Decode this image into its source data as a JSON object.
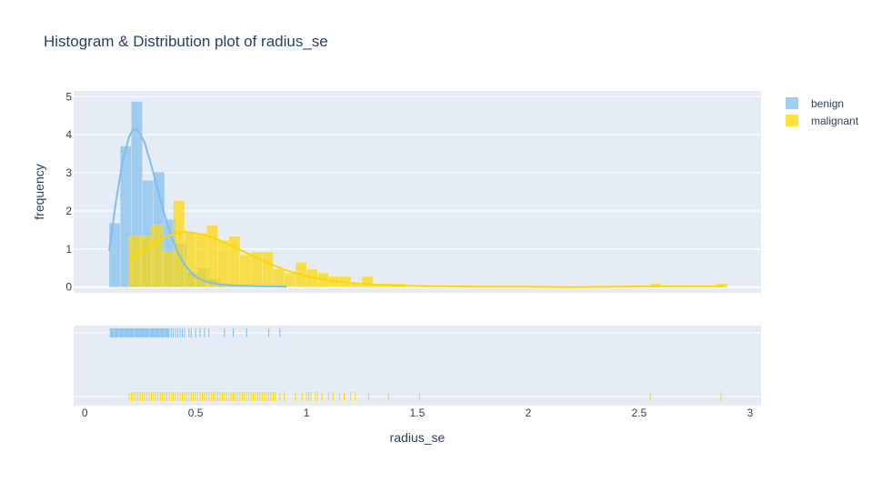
{
  "chart_data": {
    "type": "histogram",
    "title": "Histogram & Distribution plot of radius_se",
    "xlabel": "radius_se",
    "ylabel": "frequency",
    "xlim": [
      -0.05,
      3.05
    ],
    "ylim": [
      -0.15,
      5.15
    ],
    "x_ticks": [
      0,
      0.5,
      1,
      1.5,
      2,
      2.5,
      3
    ],
    "x_tick_labels": [
      "0",
      "0.5",
      "1",
      "1.5",
      "2",
      "2.5",
      "3"
    ],
    "y_ticks": [
      0,
      1,
      2,
      3,
      4,
      5
    ],
    "y_tick_labels": [
      "0",
      "1",
      "2",
      "3",
      "4",
      "5"
    ],
    "legend_position": "top-right",
    "grid": true,
    "series": [
      {
        "name": "benign",
        "color": "#7fbfee",
        "bins": [
          {
            "x0": 0.11,
            "x1": 0.16,
            "y": 1.68
          },
          {
            "x0": 0.16,
            "x1": 0.21,
            "y": 3.7
          },
          {
            "x0": 0.21,
            "x1": 0.26,
            "y": 4.87
          },
          {
            "x0": 0.26,
            "x1": 0.31,
            "y": 2.8
          },
          {
            "x0": 0.31,
            "x1": 0.36,
            "y": 3.02
          },
          {
            "x0": 0.36,
            "x1": 0.41,
            "y": 1.78
          },
          {
            "x0": 0.41,
            "x1": 0.46,
            "y": 1.15
          },
          {
            "x0": 0.46,
            "x1": 0.51,
            "y": 0.4
          },
          {
            "x0": 0.51,
            "x1": 0.56,
            "y": 0.5
          },
          {
            "x0": 0.56,
            "x1": 0.61,
            "y": 0.22
          },
          {
            "x0": 0.61,
            "x1": 0.66,
            "y": 0.1
          },
          {
            "x0": 0.66,
            "x1": 0.71,
            "y": 0.06
          },
          {
            "x0": 0.71,
            "x1": 0.76,
            "y": 0.06
          },
          {
            "x0": 0.76,
            "x1": 0.81,
            "y": 0.03
          },
          {
            "x0": 0.81,
            "x1": 0.86,
            "y": 0.03
          },
          {
            "x0": 0.86,
            "x1": 0.91,
            "y": 0.03
          }
        ],
        "curve": [
          [
            0.11,
            0.95
          ],
          [
            0.14,
            2.2
          ],
          [
            0.17,
            3.3
          ],
          [
            0.2,
            3.95
          ],
          [
            0.22,
            4.15
          ],
          [
            0.24,
            4.12
          ],
          [
            0.27,
            3.8
          ],
          [
            0.3,
            3.2
          ],
          [
            0.33,
            2.55
          ],
          [
            0.36,
            1.9
          ],
          [
            0.39,
            1.35
          ],
          [
            0.42,
            0.9
          ],
          [
            0.45,
            0.6
          ],
          [
            0.48,
            0.38
          ],
          [
            0.51,
            0.24
          ],
          [
            0.55,
            0.14
          ],
          [
            0.6,
            0.08
          ],
          [
            0.65,
            0.05
          ],
          [
            0.7,
            0.04
          ],
          [
            0.75,
            0.03
          ],
          [
            0.8,
            0.02
          ],
          [
            0.85,
            0.02
          ],
          [
            0.91,
            0.01
          ]
        ],
        "rug": [
          0.115,
          0.12,
          0.125,
          0.13,
          0.135,
          0.14,
          0.145,
          0.15,
          0.155,
          0.16,
          0.165,
          0.17,
          0.175,
          0.18,
          0.185,
          0.19,
          0.195,
          0.2,
          0.205,
          0.21,
          0.215,
          0.22,
          0.225,
          0.23,
          0.235,
          0.24,
          0.245,
          0.25,
          0.255,
          0.26,
          0.265,
          0.27,
          0.275,
          0.28,
          0.285,
          0.29,
          0.295,
          0.3,
          0.305,
          0.31,
          0.315,
          0.32,
          0.325,
          0.33,
          0.335,
          0.34,
          0.345,
          0.35,
          0.355,
          0.36,
          0.365,
          0.37,
          0.375,
          0.38,
          0.39,
          0.4,
          0.41,
          0.42,
          0.43,
          0.44,
          0.45,
          0.47,
          0.48,
          0.5,
          0.52,
          0.54,
          0.56,
          0.63,
          0.67,
          0.73,
          0.83,
          0.88
        ]
      },
      {
        "name": "malignant",
        "color": "#ffd700",
        "bins": [
          {
            "x0": 0.2,
            "x1": 0.25,
            "y": 1.33
          },
          {
            "x0": 0.25,
            "x1": 0.3,
            "y": 1.33
          },
          {
            "x0": 0.3,
            "x1": 0.35,
            "y": 1.62
          },
          {
            "x0": 0.35,
            "x1": 0.4,
            "y": 0.93
          },
          {
            "x0": 0.4,
            "x1": 0.45,
            "y": 2.27
          },
          {
            "x0": 0.45,
            "x1": 0.5,
            "y": 1.42
          },
          {
            "x0": 0.5,
            "x1": 0.55,
            "y": 1.42
          },
          {
            "x0": 0.55,
            "x1": 0.6,
            "y": 1.62
          },
          {
            "x0": 0.6,
            "x1": 0.65,
            "y": 1.23
          },
          {
            "x0": 0.65,
            "x1": 0.7,
            "y": 1.33
          },
          {
            "x0": 0.7,
            "x1": 0.75,
            "y": 0.85
          },
          {
            "x0": 0.75,
            "x1": 0.8,
            "y": 0.93
          },
          {
            "x0": 0.8,
            "x1": 0.85,
            "y": 0.93
          },
          {
            "x0": 0.85,
            "x1": 0.9,
            "y": 0.47
          },
          {
            "x0": 0.9,
            "x1": 0.95,
            "y": 0.37
          },
          {
            "x0": 0.95,
            "x1": 1.0,
            "y": 0.65
          },
          {
            "x0": 1.0,
            "x1": 1.05,
            "y": 0.47
          },
          {
            "x0": 1.05,
            "x1": 1.1,
            "y": 0.37
          },
          {
            "x0": 1.1,
            "x1": 1.15,
            "y": 0.28
          },
          {
            "x0": 1.15,
            "x1": 1.2,
            "y": 0.28
          },
          {
            "x0": 1.2,
            "x1": 1.25,
            "y": 0.09
          },
          {
            "x0": 1.25,
            "x1": 1.3,
            "y": 0.28
          },
          {
            "x0": 1.3,
            "x1": 1.35,
            "y": 0.09
          },
          {
            "x0": 1.35,
            "x1": 1.4,
            "y": 0.09
          },
          {
            "x0": 1.4,
            "x1": 1.45,
            "y": 0.09
          },
          {
            "x0": 1.5,
            "x1": 1.55,
            "y": 0.05
          },
          {
            "x0": 2.55,
            "x1": 2.6,
            "y": 0.09
          },
          {
            "x0": 2.85,
            "x1": 2.9,
            "y": 0.09
          }
        ],
        "curve": [
          [
            0.2,
            0.7
          ],
          [
            0.25,
            0.9
          ],
          [
            0.3,
            1.1
          ],
          [
            0.35,
            1.28
          ],
          [
            0.4,
            1.4
          ],
          [
            0.45,
            1.45
          ],
          [
            0.5,
            1.42
          ],
          [
            0.55,
            1.36
          ],
          [
            0.6,
            1.25
          ],
          [
            0.65,
            1.12
          ],
          [
            0.7,
            0.98
          ],
          [
            0.75,
            0.84
          ],
          [
            0.8,
            0.7
          ],
          [
            0.85,
            0.57
          ],
          [
            0.9,
            0.46
          ],
          [
            0.95,
            0.37
          ],
          [
            1.0,
            0.29
          ],
          [
            1.05,
            0.23
          ],
          [
            1.1,
            0.18
          ],
          [
            1.2,
            0.11
          ],
          [
            1.3,
            0.07
          ],
          [
            1.4,
            0.04
          ],
          [
            1.5,
            0.03
          ],
          [
            1.65,
            0.02
          ],
          [
            1.8,
            0.01
          ],
          [
            2.0,
            0.01
          ],
          [
            2.2,
            0.0
          ],
          [
            2.4,
            0.01
          ],
          [
            2.55,
            0.02
          ],
          [
            2.7,
            0.02
          ],
          [
            2.88,
            0.02
          ]
        ],
        "rug": [
          0.2,
          0.21,
          0.22,
          0.23,
          0.24,
          0.25,
          0.26,
          0.27,
          0.28,
          0.29,
          0.3,
          0.31,
          0.32,
          0.33,
          0.34,
          0.35,
          0.36,
          0.37,
          0.38,
          0.39,
          0.4,
          0.41,
          0.42,
          0.43,
          0.44,
          0.45,
          0.46,
          0.47,
          0.48,
          0.49,
          0.5,
          0.51,
          0.52,
          0.53,
          0.54,
          0.55,
          0.56,
          0.57,
          0.58,
          0.59,
          0.6,
          0.61,
          0.62,
          0.63,
          0.64,
          0.65,
          0.66,
          0.67,
          0.68,
          0.69,
          0.7,
          0.71,
          0.72,
          0.73,
          0.74,
          0.75,
          0.76,
          0.77,
          0.78,
          0.79,
          0.8,
          0.81,
          0.82,
          0.83,
          0.84,
          0.85,
          0.86,
          0.88,
          0.9,
          0.95,
          0.98,
          1.0,
          1.01,
          1.02,
          1.04,
          1.05,
          1.07,
          1.1,
          1.12,
          1.15,
          1.17,
          1.2,
          1.22,
          1.28,
          1.37,
          1.51,
          2.55,
          2.87
        ]
      }
    ]
  }
}
